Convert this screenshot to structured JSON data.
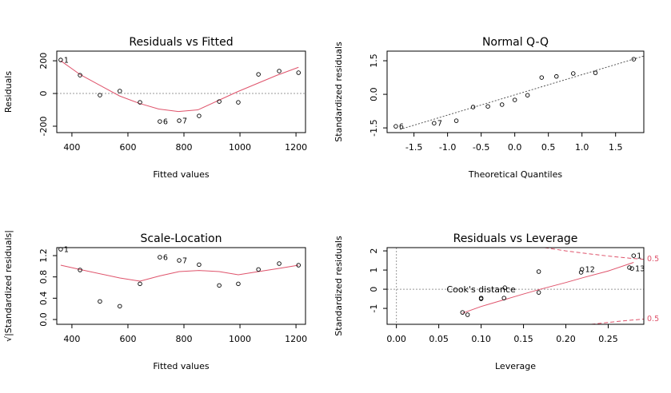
{
  "chart_data": [
    {
      "type": "scatter",
      "title": "Residuals vs Fitted",
      "x_label": "Fitted values",
      "y_label": "Residuals",
      "xlim": [
        346,
        1234
      ],
      "ylim": [
        -239,
        259
      ],
      "xticks": [
        400,
        600,
        800,
        1000,
        1200
      ],
      "yticks": [
        -200,
        0,
        200
      ],
      "hline": 0,
      "points": {
        "x": [
          360,
          429,
          500,
          571,
          643,
          714,
          783,
          854,
          926,
          994,
          1066,
          1140,
          1209
        ],
        "y": [
          205,
          112,
          -10,
          15,
          -54,
          -171,
          -166,
          -137,
          -49,
          -54,
          117,
          137,
          127
        ],
        "labels": [
          "1",
          null,
          null,
          null,
          null,
          "6",
          "7",
          null,
          null,
          null,
          null,
          null,
          null
        ]
      },
      "smooth": {
        "color": "#df536b",
        "x": [
          360,
          430,
          500,
          570,
          640,
          710,
          780,
          850,
          920,
          990,
          1060,
          1130,
          1209
        ],
        "y": [
          200,
          115,
          50,
          -15,
          -60,
          -95,
          -110,
          -100,
          -45,
          10,
          60,
          110,
          160
        ]
      }
    },
    {
      "type": "scatter",
      "title": "Normal Q-Q",
      "x_label": "Theoretical Quantiles",
      "y_label": "Standardized residuals",
      "xlim": [
        -1.9,
        1.92
      ],
      "ylim": [
        -1.71,
        1.93
      ],
      "xticks": [
        -1.5,
        {
          "value": -1,
          "label": "-1.0"
        },
        -0.5,
        {
          "value": 0,
          "label": "0.0"
        },
        0.5,
        {
          "value": 1,
          "label": "1.0"
        },
        1.5
      ],
      "yticks": [
        -1.5,
        {
          "value": 0,
          "label": "0.0"
        },
        1.5
      ],
      "points": {
        "x": [
          -1.77,
          -1.2,
          -0.87,
          -0.62,
          -0.4,
          -0.19,
          0,
          0.19,
          0.4,
          0.62,
          0.87,
          1.2,
          1.77
        ],
        "y": [
          -1.43,
          -1.29,
          -1.18,
          -0.57,
          -0.54,
          -0.46,
          -0.25,
          -0.04,
          0.75,
          0.8,
          0.93,
          0.96,
          1.57
        ],
        "labels": [
          "6",
          "7",
          null,
          null,
          null,
          null,
          null,
          null,
          null,
          null,
          null,
          null,
          null
        ]
      },
      "ref_line": {
        "color": "#555555",
        "x": [
          -1.71,
          1.92
        ],
        "y": [
          -1.57,
          1.71
        ]
      }
    },
    {
      "type": "scatter",
      "title": "Scale-Location",
      "x_label": "Fitted values",
      "y_label": "√|Standardized residuals|",
      "xlim": [
        346,
        1234
      ],
      "ylim": [
        -0.09,
        1.35
      ],
      "xticks": [
        400,
        600,
        800,
        1000,
        1200
      ],
      "yticks": [
        {
          "value": 0,
          "label": "0.0"
        },
        0.4,
        0.8,
        1.2
      ],
      "points": {
        "x": [
          360,
          429,
          500,
          571,
          643,
          714,
          783,
          854,
          926,
          994,
          1066,
          1140,
          1209
        ],
        "y": [
          1.32,
          0.93,
          0.34,
          0.25,
          0.67,
          1.17,
          1.11,
          1.03,
          0.64,
          0.67,
          0.94,
          1.05,
          1.02
        ],
        "labels": [
          "1",
          null,
          null,
          null,
          null,
          "6",
          "7",
          null,
          null,
          null,
          null,
          null,
          null
        ]
      },
      "smooth": {
        "color": "#df536b",
        "x": [
          360,
          429,
          571,
          643,
          714,
          783,
          854,
          926,
          994,
          1066,
          1140,
          1209
        ],
        "y": [
          1.02,
          0.94,
          0.78,
          0.72,
          0.82,
          0.9,
          0.92,
          0.9,
          0.84,
          0.9,
          0.96,
          1.02
        ]
      }
    },
    {
      "type": "scatter",
      "title": "Residuals vs Leverage",
      "x_label": "Leverage",
      "y_label": "Standardized residuals",
      "xlim": [
        -0.011,
        0.292
      ],
      "ylim": [
        -1.83,
        2.17
      ],
      "xticks": [
        {
          "value": 0,
          "label": "0.00"
        },
        0.05,
        {
          "value": 0.1,
          "label": "0.10"
        },
        0.15,
        {
          "value": 0.2,
          "label": "0.20"
        },
        0.25
      ],
      "yticks": [
        -1,
        0,
        1,
        2
      ],
      "hline": 0,
      "vline": 0,
      "points": {
        "x": [
          0.078,
          0.084,
          0.1,
          0.1,
          0.127,
          0.128,
          0.168,
          0.168,
          0.219,
          0.218,
          0.275,
          0.28,
          0.278
        ],
        "y": [
          -1.21,
          -1.33,
          -0.46,
          -0.5,
          -0.46,
          0.08,
          0.92,
          -0.17,
          1.04,
          0.88,
          1.13,
          1.75,
          1.08
        ],
        "labels": [
          null,
          null,
          null,
          null,
          null,
          null,
          null,
          null,
          "12",
          null,
          null,
          "1",
          "13"
        ]
      },
      "smooth": {
        "color": "#df536b",
        "x": [
          0.078,
          0.1,
          0.127,
          0.15,
          0.17,
          0.2,
          0.22,
          0.25,
          0.28
        ],
        "y": [
          -1.25,
          -0.9,
          -0.55,
          -0.25,
          0,
          0.35,
          0.6,
          0.95,
          1.4
        ]
      },
      "cooks_distance": {
        "label": "Cook's distance",
        "level": 0.5,
        "color": "#df536b",
        "upper": {
          "x": [
            0.175,
            0.2,
            0.225,
            0.25,
            0.275,
            0.292
          ],
          "y": [
            2.17,
            2.0,
            1.86,
            1.73,
            1.62,
            1.56
          ]
        },
        "lower": {
          "x": [
            0.23,
            0.25,
            0.275,
            0.292
          ],
          "y": [
            -1.83,
            -1.73,
            -1.62,
            -1.56
          ]
        }
      }
    }
  ]
}
